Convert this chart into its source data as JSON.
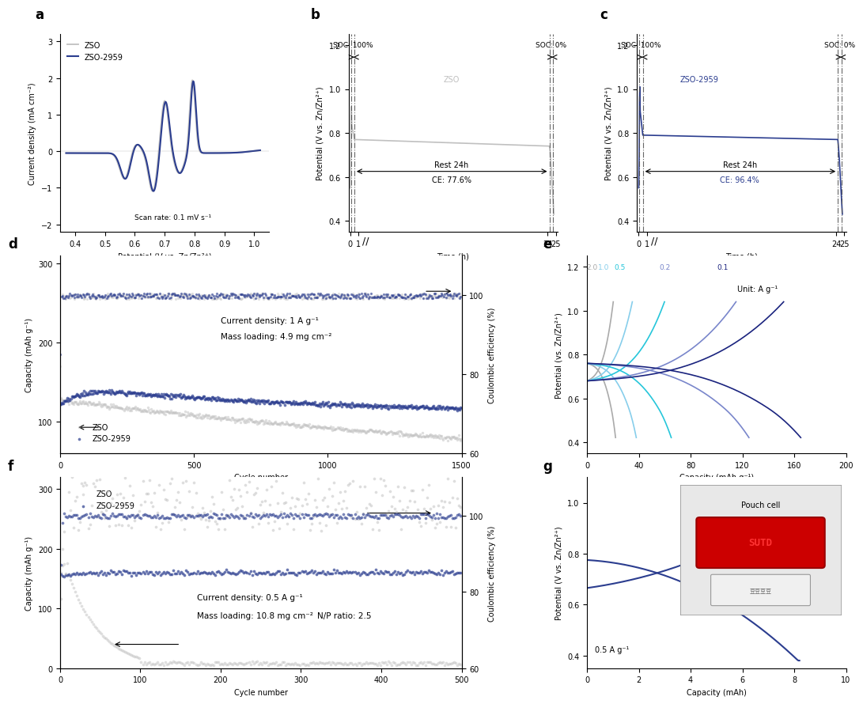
{
  "fig_width": 10.8,
  "fig_height": 8.62,
  "colors": {
    "ZSO": "#c0c0c0",
    "ZSO2959": "#2b3d8f",
    "rate_2": "#aaaaaa",
    "rate_1": "#87ceeb",
    "rate_05": "#26c6da",
    "rate_02": "#7986cb",
    "rate_01": "#1a237e"
  },
  "panel_a": {
    "xlabel": "Potential (V vs. Zn/Zn²⁺)",
    "ylabel": "Current density (mA cm⁻²)",
    "xlim": [
      0.35,
      1.05
    ],
    "ylim": [
      -2.2,
      3.2
    ],
    "xticks": [
      0.4,
      0.5,
      0.6,
      0.7,
      0.8,
      0.9,
      1.0
    ],
    "yticks": [
      -2,
      -1,
      0,
      1,
      2,
      3
    ],
    "annotation": "Scan rate: 0.1 mV s⁻¹"
  },
  "panel_b": {
    "xlabel": "Time (h)",
    "ylabel": "Potential (V vs. Zn/Zn²⁺)",
    "ylim": [
      0.35,
      1.25
    ],
    "yticks": [
      0.4,
      0.6,
      0.8,
      1.0,
      1.2
    ],
    "label": "ZSO",
    "soc100": "SOC: 100%",
    "soc0": "SOC: 0%",
    "rest": "Rest 24h",
    "ce": "CE: 77.6%"
  },
  "panel_c": {
    "xlabel": "Time (h)",
    "ylabel": "Potential (V vs. Zn/Zn²⁺)",
    "ylim": [
      0.35,
      1.25
    ],
    "yticks": [
      0.4,
      0.6,
      0.8,
      1.0,
      1.2
    ],
    "label": "ZSO-2959",
    "soc100": "SOC: 100%",
    "soc0": "SOC: 0%",
    "rest": "Rest 24h",
    "ce": "CE: 96.4%"
  },
  "panel_d": {
    "xlabel": "Cycle number",
    "ylabel1": "Capacity (mAh g⁻¹)",
    "ylabel2": "Coulombic efficiency (%)",
    "xlim": [
      0,
      1500
    ],
    "ylim1": [
      60,
      310
    ],
    "ylim2": [
      60,
      110
    ],
    "yticks1": [
      100,
      200,
      300
    ],
    "yticks2": [
      60,
      80,
      100
    ],
    "xticks": [
      0,
      500,
      1000,
      1500
    ],
    "text1": "Current density: 1 A g⁻¹",
    "text2": "Mass loading: 4.9 mg cm⁻²"
  },
  "panel_e": {
    "xlabel": "Capacity (mAh g⁻¹)",
    "ylabel": "Potential (vs. Zn/Zn²⁺)",
    "xlim": [
      0,
      200
    ],
    "ylim": [
      0.35,
      1.25
    ],
    "yticks": [
      0.4,
      0.6,
      0.8,
      1.0,
      1.2
    ],
    "xticks": [
      0,
      40,
      80,
      120,
      160,
      200
    ],
    "unit": "Unit: A g⁻¹"
  },
  "panel_f": {
    "xlabel": "Cycle number",
    "ylabel1": "Capacity (mAh g⁻¹)",
    "ylabel2": "Coulombic efficiency (%)",
    "xlim": [
      0,
      500
    ],
    "ylim1": [
      0,
      320
    ],
    "ylim2": [
      60,
      110
    ],
    "yticks1": [
      0,
      100,
      200,
      300
    ],
    "yticks2": [
      60,
      80,
      100
    ],
    "xticks": [
      0,
      100,
      200,
      300,
      400,
      500
    ],
    "text1": "Current density: 0.5 A g⁻¹",
    "text2": "Mass loading: 10.8 mg cm⁻²",
    "text3": "N/P ratio: 2.5"
  },
  "panel_g": {
    "xlabel": "Capacity (mAh)",
    "ylabel": "Potential (V vs. Zn/Zn²⁺)",
    "xlim": [
      0,
      10
    ],
    "ylim": [
      0.35,
      1.1
    ],
    "yticks": [
      0.4,
      0.6,
      0.8,
      1.0
    ],
    "xticks": [
      0,
      2,
      4,
      6,
      8,
      10
    ],
    "rate": "0.5 A g⁻¹",
    "pouch": "Pouch cell"
  }
}
